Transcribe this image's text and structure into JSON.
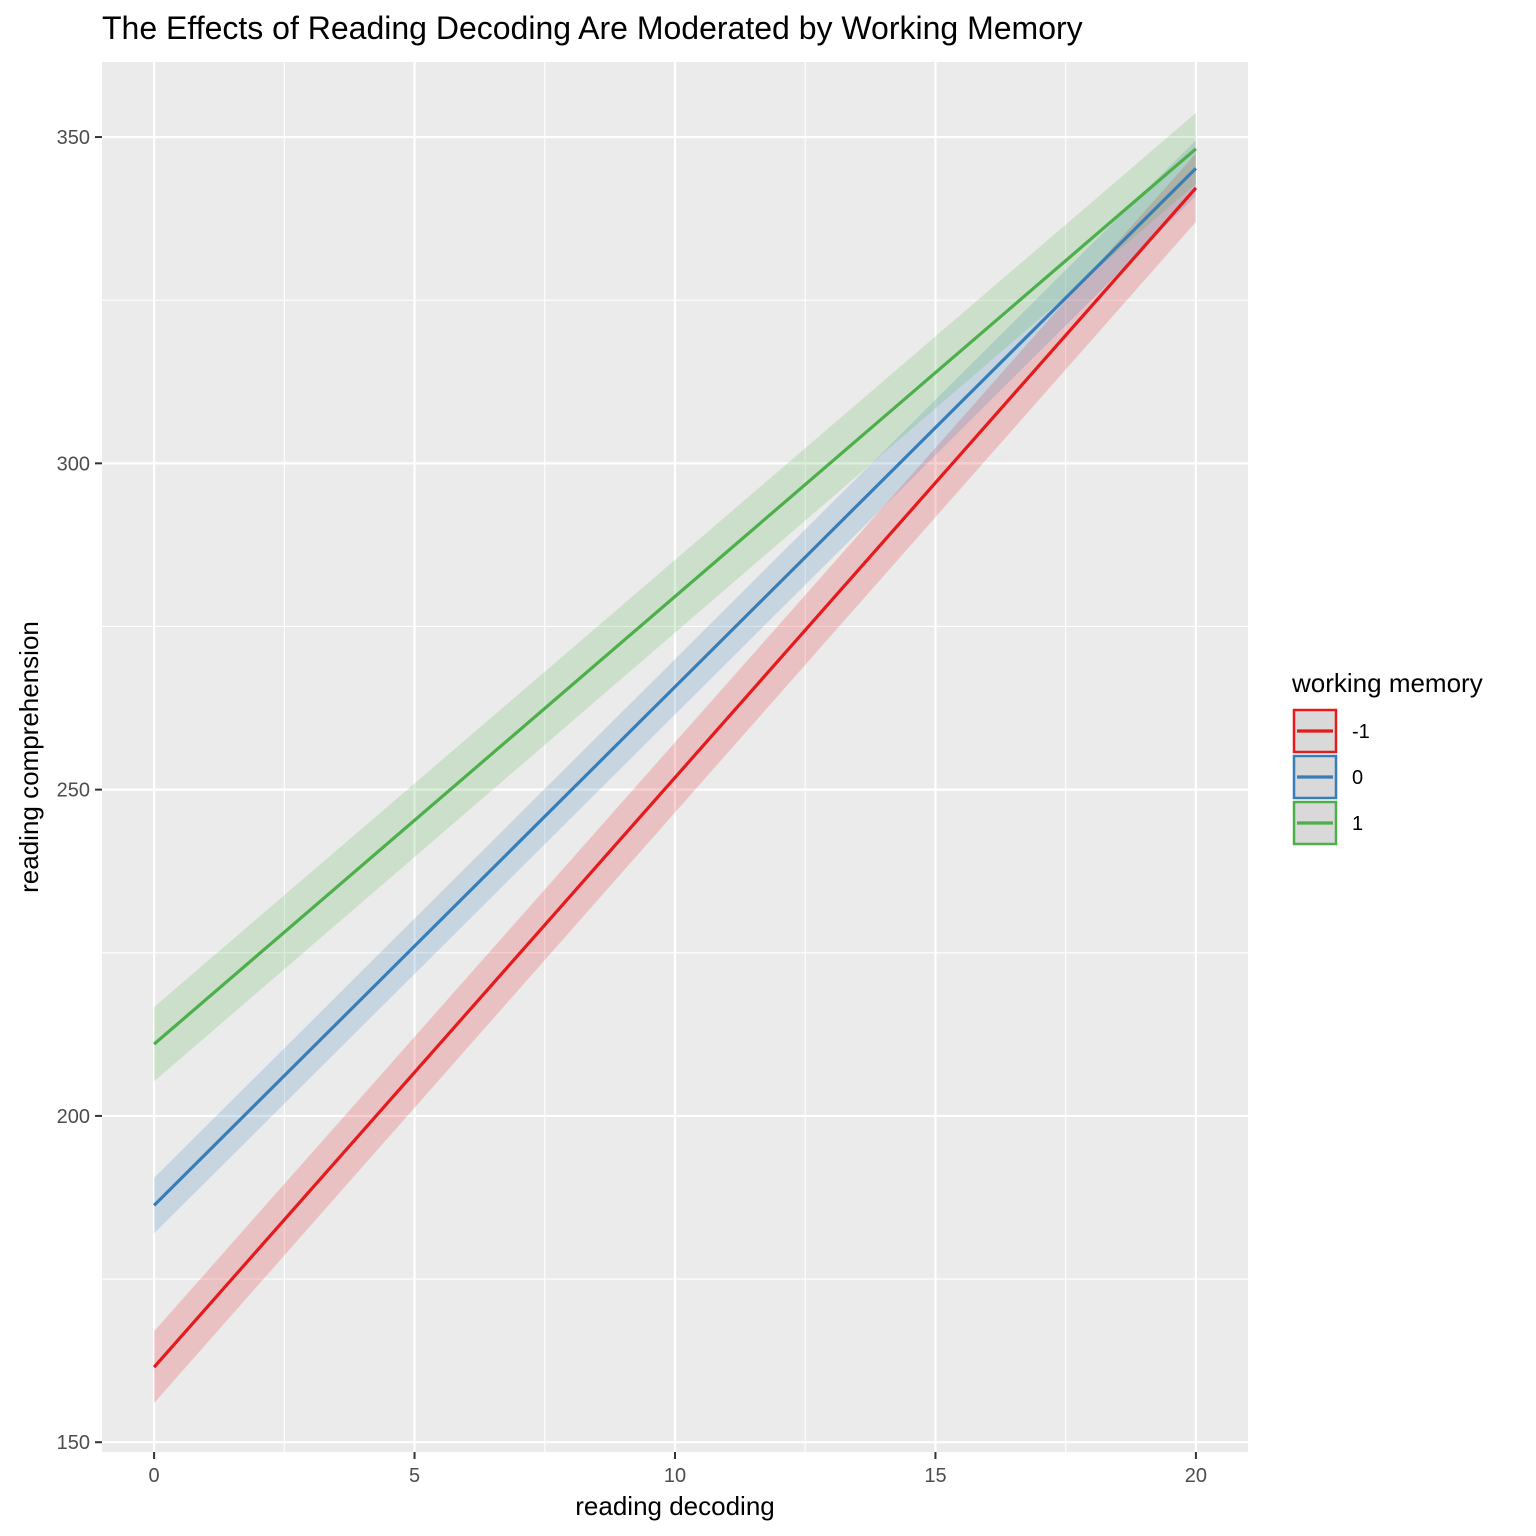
{
  "chart_data": {
    "type": "line",
    "title": "The Effects of Reading Decoding Are Moderated by Working Memory",
    "xlabel": "reading decoding",
    "ylabel": "reading comprehension",
    "xlim": [
      -1,
      21
    ],
    "ylim": [
      148.5,
      361.5
    ],
    "x_ticks": [
      0,
      5,
      10,
      15,
      20
    ],
    "y_ticks": [
      150,
      200,
      250,
      300,
      350
    ],
    "grid": true,
    "background": "#EBEBEB",
    "legend": {
      "title": "working memory",
      "position": "right"
    },
    "series": [
      {
        "name": "-1",
        "color": "#E41A1C",
        "x": [
          0,
          20
        ],
        "y": [
          161.5,
          342.2
        ],
        "ci_lower": [
          156.0,
          337.0
        ],
        "ci_upper": [
          167.0,
          347.5
        ]
      },
      {
        "name": "0",
        "color": "#377EB8",
        "x": [
          0,
          20
        ],
        "y": [
          186.3,
          345.2
        ],
        "ci_lower": [
          182.0,
          341.0
        ],
        "ci_upper": [
          190.5,
          349.5
        ]
      },
      {
        "name": "1",
        "color": "#4DAF4A",
        "x": [
          0,
          20
        ],
        "y": [
          211.0,
          348.2
        ],
        "ci_lower": [
          205.3,
          342.8
        ],
        "ci_upper": [
          216.7,
          353.7
        ]
      }
    ]
  }
}
